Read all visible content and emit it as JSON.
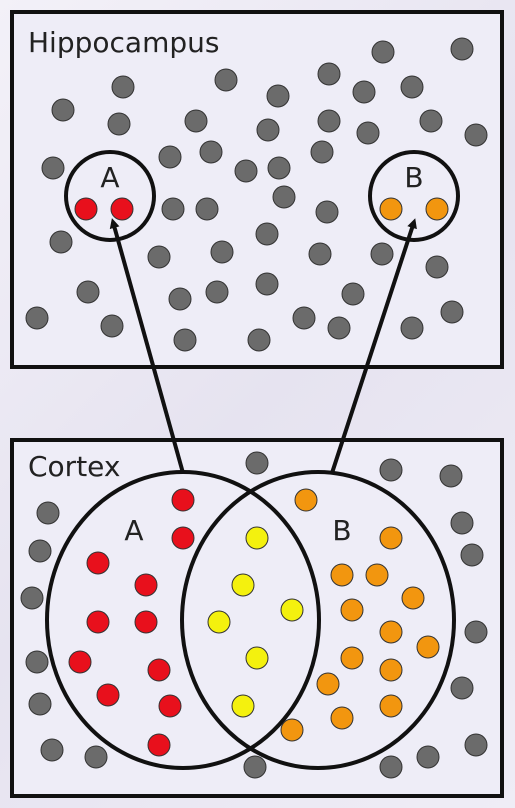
{
  "hippocampus": {
    "title": "Hippocampus",
    "label_a": "A",
    "label_b": "B"
  },
  "cortex": {
    "title": "Cortex",
    "label_a": "A",
    "label_b": "B"
  },
  "colors": {
    "neutral": "#6b6b6b",
    "a": "#e8101c",
    "b": "#f2960f",
    "overlap": "#f4f10e",
    "panel_bg": "#eeedf7",
    "stroke": "#111111"
  }
}
